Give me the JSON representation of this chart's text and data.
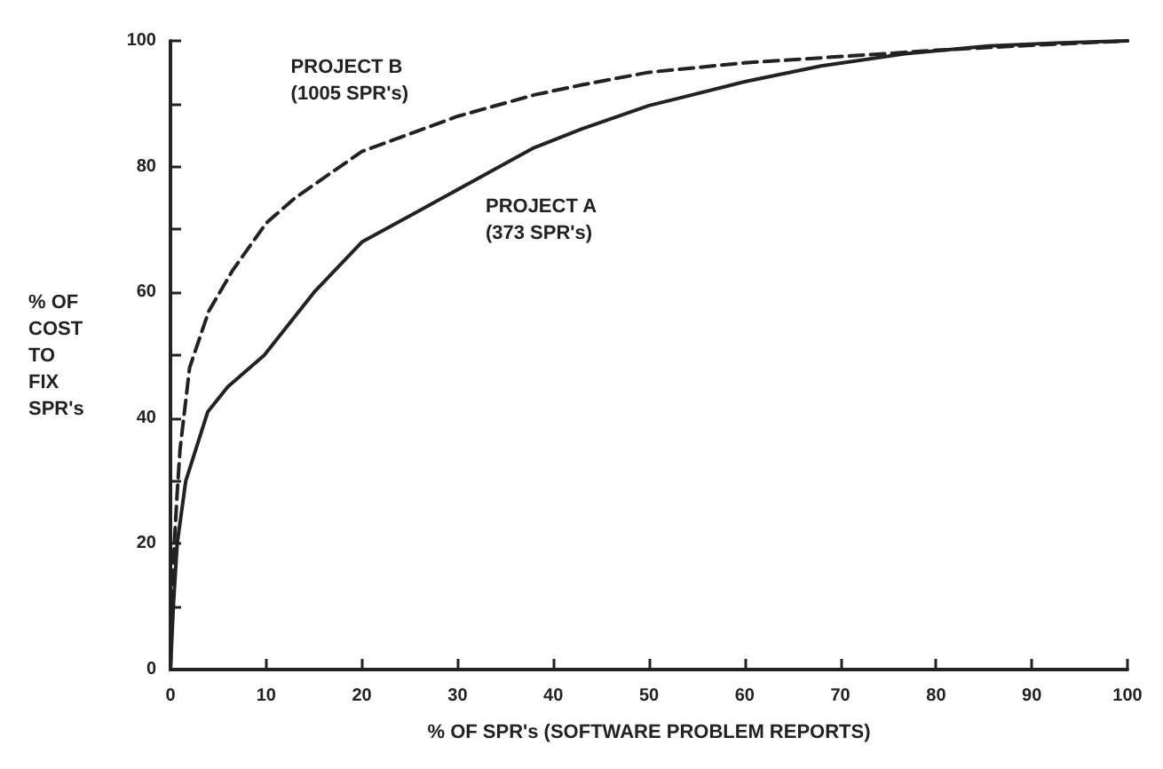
{
  "chart_data": {
    "type": "line",
    "xlabel": "% OF SPR's (SOFTWARE PROBLEM REPORTS)",
    "ylabel": "% OF\nCOST\nTO\nFIX\nSPR's",
    "xlim": [
      0,
      100
    ],
    "xticks": [
      0,
      10,
      20,
      30,
      40,
      50,
      60,
      70,
      80,
      90,
      100
    ],
    "ylim": [
      0,
      100
    ],
    "yticks": [
      0,
      {
        "value": 10,
        "label": null
      },
      20,
      {
        "value": 30,
        "label": null
      },
      40,
      {
        "value": 50,
        "label": null
      },
      60,
      {
        "value": 70,
        "label": null
      },
      80,
      {
        "value": 90,
        "label": null
      },
      100
    ],
    "grid": false,
    "marker": "none",
    "series": [
      {
        "name": "PROJECT B\n(1005 SPR's)",
        "color": "#222222",
        "line_style": "dashed",
        "x": [
          0,
          0.2,
          0.4,
          0.7,
          1,
          2,
          4,
          6.5,
          10,
          13,
          20,
          30,
          38,
          43,
          50,
          60,
          68,
          80,
          90,
          100
        ],
        "values": [
          0,
          10,
          20,
          28,
          35,
          48,
          57,
          63.5,
          71,
          75,
          82.4,
          88,
          91.4,
          93,
          95,
          96.5,
          97.3,
          98.5,
          99.3,
          100
        ]
      },
      {
        "name": "PROJECT A\n(373 SPR's)",
        "color": "#222222",
        "line_style": "solid",
        "x": [
          0,
          0.3,
          0.7,
          1.6,
          3.9,
          6,
          9.8,
          15,
          20,
          26,
          32,
          38,
          43,
          50,
          60,
          68,
          77,
          85.5,
          93,
          100
        ],
        "values": [
          0,
          10,
          20,
          30,
          41,
          45,
          50,
          60,
          68,
          73,
          78,
          83,
          86,
          89.7,
          93.5,
          96,
          98,
          99.2,
          99.7,
          100
        ]
      }
    ]
  }
}
